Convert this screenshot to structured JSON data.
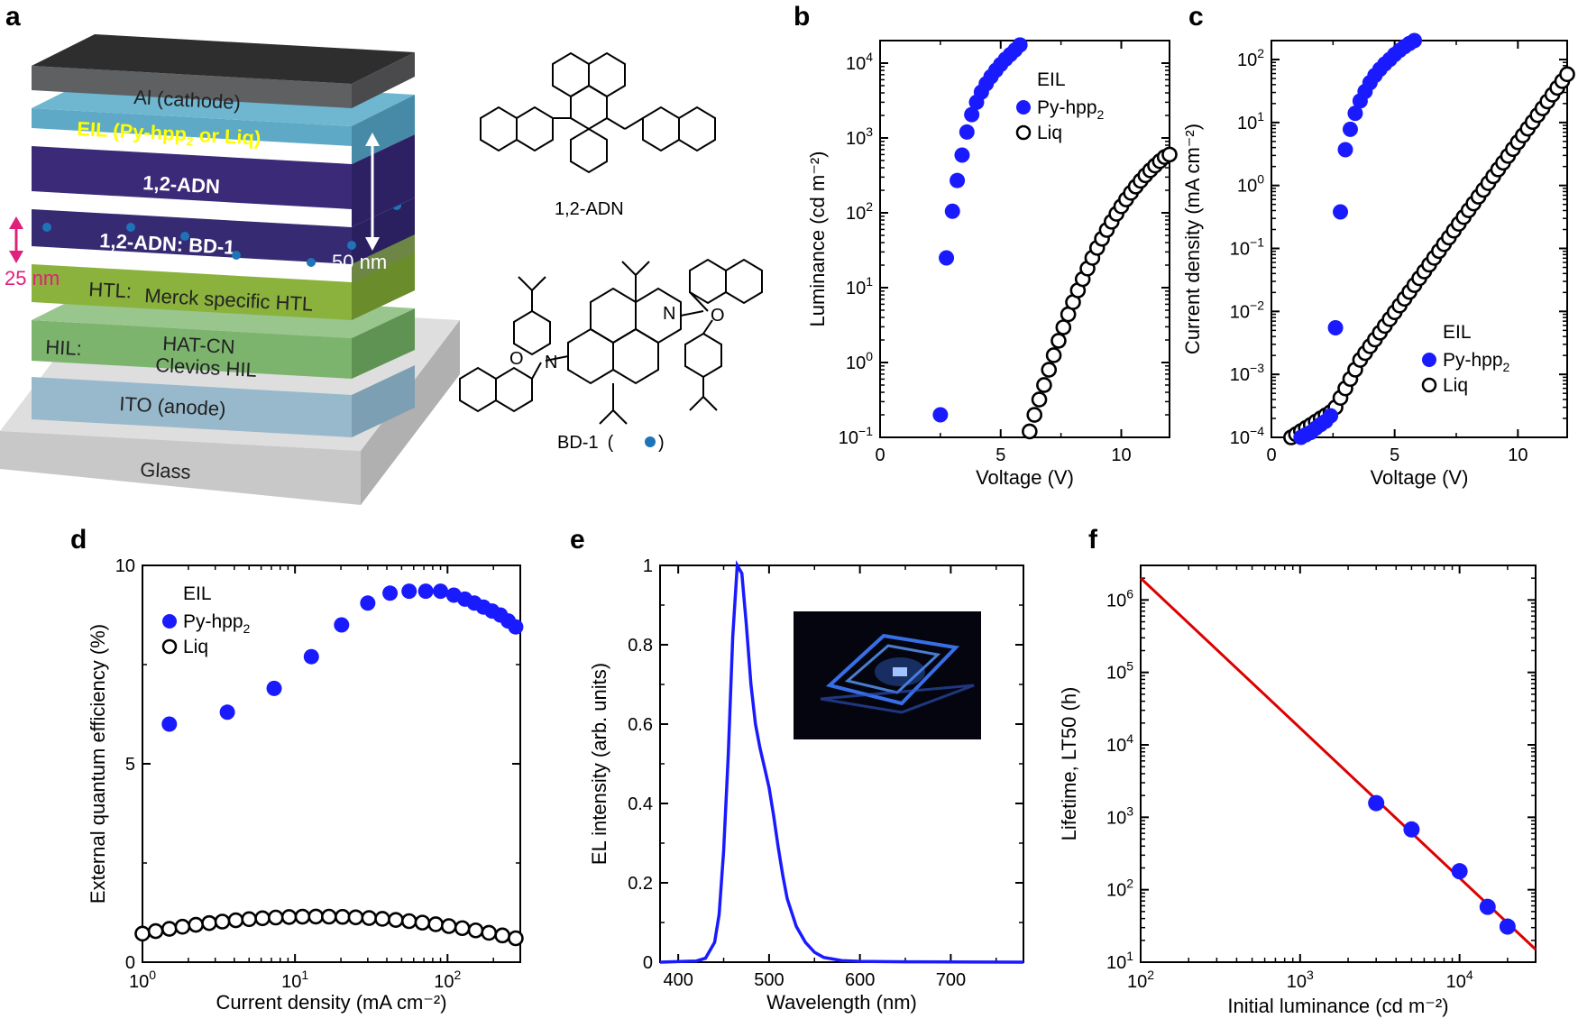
{
  "panels": {
    "a": "a",
    "b": "b",
    "c": "c",
    "d": "d",
    "e": "e",
    "f": "f"
  },
  "device": {
    "layers": [
      {
        "label": "Al (cathode)",
        "color": "#5f6062"
      },
      {
        "label": "EIL (Py-hpp",
        "label_sub": "2",
        "label_tail": " or Liq)",
        "color": "#5ea9c6"
      },
      {
        "label": "1,2-ADN",
        "color": "#3b2a78"
      },
      {
        "label": "1,2-ADN: BD-1",
        "color": "#362a72"
      },
      {
        "label": "HTL:",
        "label2": "Merck specific HTL",
        "color": "#8ab23c"
      },
      {
        "label": "HIL:",
        "label2": "HAT-CN",
        "label3": "Clevios HIL",
        "color": "#7cb46e"
      },
      {
        "label": "ITO (anode)",
        "color": "#98b9cc"
      },
      {
        "label": "Glass",
        "color": "#cfcfcf"
      }
    ],
    "dim_25": "25 nm",
    "dim_50": "50 nm",
    "dopant_color": "#1f74b8",
    "accent_magenta": "#e0207a"
  },
  "molecules": {
    "adn": "1,2-ADN",
    "bd1": "BD-1",
    "bd1_paren_open": "(",
    "bd1_paren_close": ")"
  },
  "colors": {
    "blue": "#1a1aff",
    "red": "#dd0000",
    "black": "#000000"
  },
  "chart_data": [
    {
      "panel": "b",
      "type": "scatter",
      "xlabel": "Voltage (V)",
      "ylabel": "Luminance (cd m⁻²)",
      "xlim": [
        0,
        12
      ],
      "ylim": [
        0.1,
        20000
      ],
      "yscale": "log",
      "xticks": [
        "0",
        "5",
        "10"
      ],
      "yticks": [
        {
          "v": 0.1,
          "b": "10",
          "e": "−1"
        },
        {
          "v": 1,
          "b": "10",
          "e": "0"
        },
        {
          "v": 10,
          "b": "10",
          "e": "1"
        },
        {
          "v": 100,
          "b": "10",
          "e": "2"
        },
        {
          "v": 1000,
          "b": "10",
          "e": "3"
        },
        {
          "v": 10000,
          "b": "10",
          "e": "4"
        }
      ],
      "legend": {
        "title": "EIL",
        "entries": [
          "Py-hpp",
          "Liq"
        ],
        "sub": "2"
      },
      "series": [
        {
          "name": "Py-hpp2",
          "style": "filled",
          "points": [
            [
              2.5,
              0.2
            ],
            [
              2.75,
              25
            ],
            [
              3.0,
              105
            ],
            [
              3.2,
              270
            ],
            [
              3.4,
              590
            ],
            [
              3.6,
              1200
            ],
            [
              3.8,
              2050
            ],
            [
              4.0,
              3000
            ],
            [
              4.2,
              4100
            ],
            [
              4.4,
              5300
            ],
            [
              4.6,
              6600
            ],
            [
              4.8,
              8000
            ],
            [
              5.0,
              9600
            ],
            [
              5.2,
              11300
            ],
            [
              5.4,
              13000
            ],
            [
              5.6,
              15000
            ],
            [
              5.8,
              17500
            ]
          ]
        },
        {
          "name": "Liq",
          "style": "open",
          "points": [
            [
              6.2,
              0.12
            ],
            [
              6.4,
              0.2
            ],
            [
              6.6,
              0.32
            ],
            [
              6.8,
              0.5
            ],
            [
              7.0,
              0.8
            ],
            [
              7.2,
              1.25
            ],
            [
              7.4,
              1.95
            ],
            [
              7.6,
              2.95
            ],
            [
              7.8,
              4.4
            ],
            [
              8.0,
              6.4
            ],
            [
              8.2,
              9.2
            ],
            [
              8.4,
              13
            ],
            [
              8.6,
              18
            ],
            [
              8.8,
              25
            ],
            [
              9.0,
              34
            ],
            [
              9.2,
              45
            ],
            [
              9.4,
              59
            ],
            [
              9.6,
              76
            ],
            [
              9.8,
              97
            ],
            [
              10.0,
              122
            ],
            [
              10.2,
              151
            ],
            [
              10.4,
              185
            ],
            [
              10.6,
              224
            ],
            [
              10.8,
              268
            ],
            [
              11.0,
              317
            ],
            [
              11.2,
              370
            ],
            [
              11.4,
              428
            ],
            [
              11.6,
              490
            ],
            [
              11.8,
              556
            ],
            [
              12.0,
              600
            ]
          ]
        }
      ]
    },
    {
      "panel": "c",
      "type": "scatter",
      "xlabel": "Voltage (V)",
      "ylabel": "Current density (mA cm⁻²)",
      "xlim": [
        0,
        12
      ],
      "ylim": [
        0.0001,
        200
      ],
      "yscale": "log",
      "xticks": [
        "0",
        "5",
        "10"
      ],
      "yticks": [
        {
          "v": 0.0001,
          "b": "10",
          "e": "−4"
        },
        {
          "v": 0.001,
          "b": "10",
          "e": "−3"
        },
        {
          "v": 0.01,
          "b": "10",
          "e": "−2"
        },
        {
          "v": 0.1,
          "b": "10",
          "e": "−1"
        },
        {
          "v": 1,
          "b": "10",
          "e": "0"
        },
        {
          "v": 10,
          "b": "10",
          "e": "1"
        },
        {
          "v": 100,
          "b": "10",
          "e": "2"
        }
      ],
      "legend": {
        "title": "EIL",
        "entries": [
          "Py-hpp",
          "Liq"
        ],
        "sub": "2"
      },
      "series": [
        {
          "name": "Py-hpp2",
          "style": "filled",
          "points": [
            [
              1.2,
              0.0001
            ],
            [
              1.4,
              0.00011
            ],
            [
              1.6,
              0.00012
            ],
            [
              1.8,
              0.00014
            ],
            [
              2.0,
              0.00016
            ],
            [
              2.2,
              0.00018
            ],
            [
              2.4,
              0.00022
            ],
            [
              2.6,
              0.0055
            ],
            [
              2.8,
              0.38
            ],
            [
              3.0,
              3.7
            ],
            [
              3.2,
              7.8
            ],
            [
              3.4,
              14
            ],
            [
              3.6,
              22
            ],
            [
              3.8,
              31
            ],
            [
              4.0,
              43
            ],
            [
              4.2,
              56
            ],
            [
              4.4,
              70
            ],
            [
              4.6,
              85
            ],
            [
              4.8,
              100
            ],
            [
              5.0,
              120
            ],
            [
              5.2,
              140
            ],
            [
              5.4,
              160
            ],
            [
              5.6,
              180
            ],
            [
              5.8,
              200
            ]
          ]
        },
        {
          "name": "Liq",
          "style": "open",
          "points": []
        }
      ]
    },
    {
      "panel": "d",
      "type": "scatter",
      "xlabel": "Current density (mA cm⁻²)",
      "ylabel": "External quantum efficiency (%)",
      "xlim": [
        1,
        300
      ],
      "xscale": "log",
      "ylim": [
        0,
        10
      ],
      "xticks": [
        {
          "v": 1,
          "b": "10",
          "e": "0"
        },
        {
          "v": 10,
          "b": "10",
          "e": "1"
        },
        {
          "v": 100,
          "b": "10",
          "e": "2"
        }
      ],
      "yticks": [
        "0",
        "5",
        "10"
      ],
      "legend": {
        "title": "EIL",
        "entries": [
          "Py-hpp",
          "Liq"
        ],
        "sub": "2"
      },
      "series": [
        {
          "name": "Py-hpp2",
          "style": "filled",
          "points": [
            [
              1.5,
              6.0
            ],
            [
              3.6,
              6.3
            ],
            [
              7.3,
              6.9
            ],
            [
              12.8,
              7.7
            ],
            [
              20.2,
              8.5
            ],
            [
              30,
              9.05
            ],
            [
              42,
              9.3
            ],
            [
              56,
              9.35
            ],
            [
              72,
              9.35
            ],
            [
              90,
              9.35
            ],
            [
              110,
              9.25
            ],
            [
              130,
              9.15
            ],
            [
              150,
              9.05
            ],
            [
              172,
              8.95
            ],
            [
              196,
              8.85
            ],
            [
              222,
              8.75
            ],
            [
              250,
              8.6
            ],
            [
              280,
              8.45
            ]
          ]
        },
        {
          "name": "Liq",
          "style": "open",
          "points": []
        }
      ]
    },
    {
      "panel": "e",
      "type": "line",
      "xlabel": "Wavelength (nm)",
      "ylabel": "EL intensity (arb. units)",
      "xlim": [
        380,
        780
      ],
      "ylim": [
        0,
        1
      ],
      "xticks": [
        "400",
        "500",
        "600",
        "700"
      ],
      "yticks": [
        "0",
        "0.2",
        "0.4",
        "0.6",
        "0.8",
        "1"
      ],
      "series": [
        {
          "name": "EL",
          "points": [
            [
              380,
              0
            ],
            [
              420,
              0.003
            ],
            [
              430,
              0.01
            ],
            [
              440,
              0.05
            ],
            [
              445,
              0.12
            ],
            [
              450,
              0.28
            ],
            [
              455,
              0.52
            ],
            [
              460,
              0.82
            ],
            [
              465,
              1.0
            ],
            [
              470,
              0.98
            ],
            [
              475,
              0.85
            ],
            [
              480,
              0.7
            ],
            [
              485,
              0.6
            ],
            [
              490,
              0.54
            ],
            [
              495,
              0.49
            ],
            [
              500,
              0.44
            ],
            [
              505,
              0.37
            ],
            [
              510,
              0.29
            ],
            [
              515,
              0.22
            ],
            [
              520,
              0.16
            ],
            [
              530,
              0.09
            ],
            [
              540,
              0.05
            ],
            [
              550,
              0.025
            ],
            [
              560,
              0.012
            ],
            [
              580,
              0.004
            ],
            [
              600,
              0.002
            ],
            [
              650,
              0.001
            ],
            [
              780,
              0.0
            ]
          ]
        }
      ]
    },
    {
      "panel": "f",
      "type": "scatter",
      "xlabel": "Initial luminance (cd m⁻²)",
      "ylabel": "Lifetime, LT50 (h)",
      "xlim": [
        100,
        30000
      ],
      "xscale": "log",
      "ylim": [
        10,
        3000000
      ],
      "yscale": "log",
      "xticks": [
        {
          "v": 100,
          "b": "10",
          "e": "2"
        },
        {
          "v": 1000,
          "b": "10",
          "e": "3"
        },
        {
          "v": 10000,
          "b": "10",
          "e": "4"
        }
      ],
      "yticks": [
        {
          "v": 10,
          "b": "10",
          "e": "1"
        },
        {
          "v": 100,
          "b": "10",
          "e": "2"
        },
        {
          "v": 1000,
          "b": "10",
          "e": "3"
        },
        {
          "v": 10000,
          "b": "10",
          "e": "4"
        },
        {
          "v": 100000,
          "b": "10",
          "e": "5"
        },
        {
          "v": 1000000,
          "b": "10",
          "e": "6"
        }
      ],
      "series": [
        {
          "name": "LT50",
          "style": "filled",
          "points": [
            [
              3000,
              1570
            ],
            [
              5000,
              680
            ],
            [
              10000,
              180
            ],
            [
              15000,
              58
            ],
            [
              20000,
              31
            ]
          ]
        },
        {
          "name": "fit",
          "style": "line",
          "points": [
            [
              100,
              2000000
            ],
            [
              30000,
              15
            ]
          ]
        }
      ]
    }
  ]
}
